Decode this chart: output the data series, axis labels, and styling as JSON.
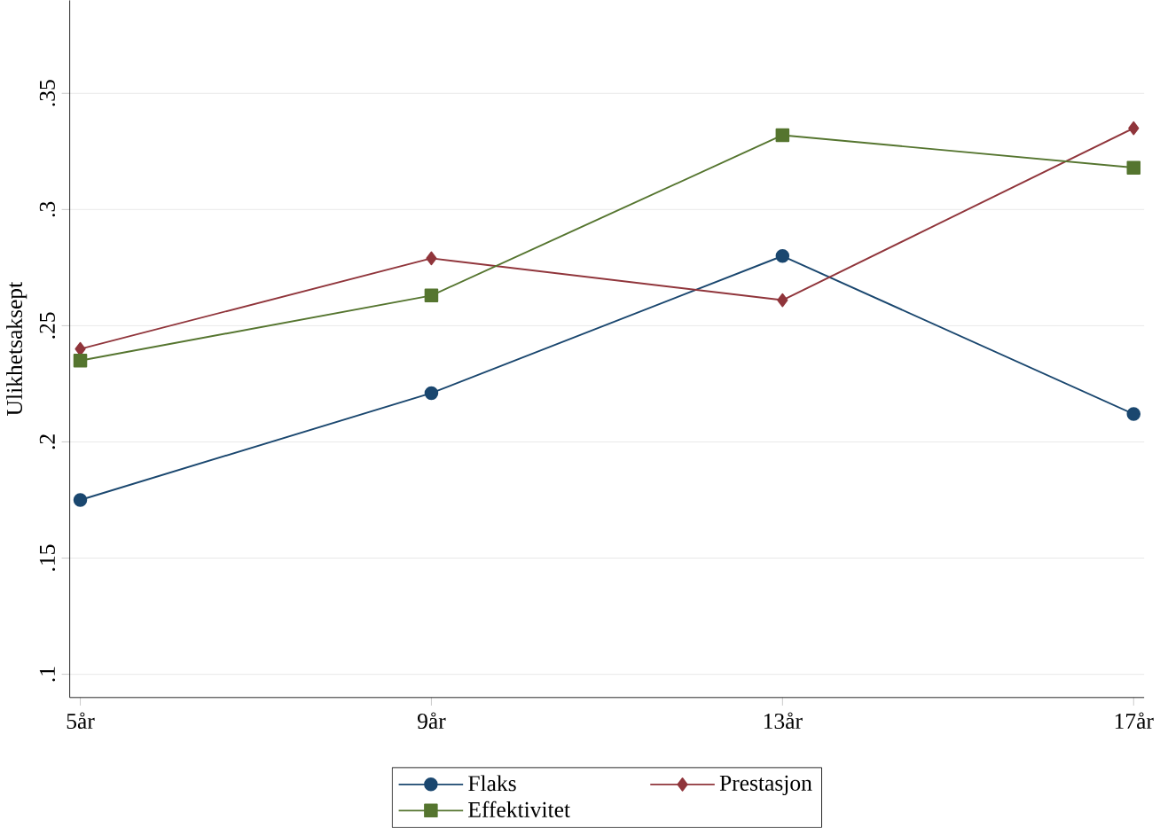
{
  "chart_data": {
    "type": "line",
    "ylabel": "Ulikhetsaksept",
    "categories": [
      "5år",
      "9år",
      "13år",
      "17år"
    ],
    "series": [
      {
        "name": "Flaks",
        "color": "#1a476f",
        "marker": "circle",
        "values": [
          0.175,
          0.221,
          0.28,
          0.212
        ]
      },
      {
        "name": "Prestasjon",
        "color": "#90353b",
        "marker": "diamond",
        "values": [
          0.24,
          0.279,
          0.261,
          0.335
        ]
      },
      {
        "name": "Effektivitet",
        "color": "#55752f",
        "marker": "square",
        "values": [
          0.235,
          0.263,
          0.332,
          0.318
        ]
      }
    ],
    "ylim": [
      0.09,
      0.39
    ],
    "yticks": [
      {
        "value": 0.1,
        "label": ".1"
      },
      {
        "value": 0.15,
        "label": ".15"
      },
      {
        "value": 0.2,
        "label": ".2"
      },
      {
        "value": 0.25,
        "label": ".25"
      },
      {
        "value": 0.3,
        "label": ".3"
      },
      {
        "value": 0.35,
        "label": ".35"
      }
    ],
    "grid": "y",
    "legend": "bottom",
    "line_style": "solid"
  }
}
